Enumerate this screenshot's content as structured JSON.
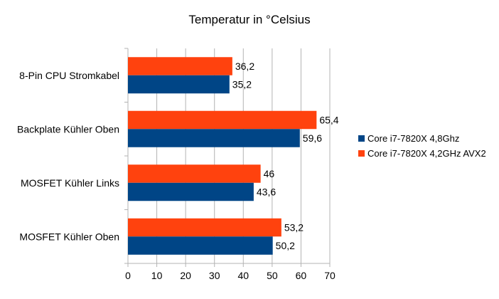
{
  "chart_data": {
    "type": "bar",
    "orientation": "horizontal",
    "title": "Temperatur in °Celsius",
    "xlabel": "",
    "ylabel": "",
    "xlim": [
      0,
      70
    ],
    "x_ticks": [
      "0",
      "10",
      "20",
      "30",
      "40",
      "50",
      "60",
      "70"
    ],
    "grid": true,
    "legend_position": "right",
    "categories": [
      "8-Pin CPU Stromkabel",
      "Backplate Kühler Oben",
      "MOSFET Kühler Links",
      "MOSFET Kühler Oben"
    ],
    "series": [
      {
        "name": "Core i7-7820X 4,8Ghz",
        "color": "#004586",
        "values": [
          35.2,
          59.6,
          43.6,
          50.2
        ],
        "labels": [
          "35,2",
          "59,6",
          "43,6",
          "50,2"
        ]
      },
      {
        "name": "Core i7-7820X 4,2GHz AVX2",
        "color": "#ff420e",
        "values": [
          36.2,
          65.4,
          46,
          53.2
        ],
        "labels": [
          "36,2",
          "65,4",
          "46",
          "53,2"
        ]
      }
    ]
  }
}
